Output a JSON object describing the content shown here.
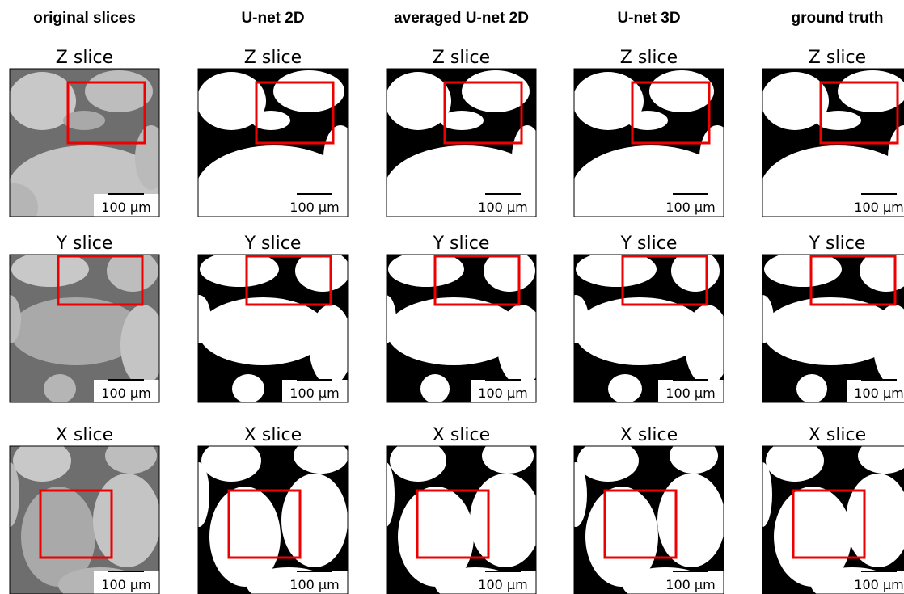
{
  "columns": [
    "original slices",
    "U-net 2D",
    "averaged U-net 2D",
    "U-net 3D",
    "ground truth"
  ],
  "rows": [
    "Z slice",
    "Y slice",
    "X slice"
  ],
  "scale_bar": "100 µm"
}
